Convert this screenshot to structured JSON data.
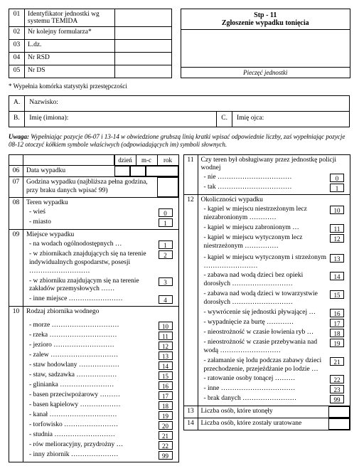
{
  "header": {
    "rows": [
      {
        "n": "01",
        "t": "Identyfikator jednostki wg systemu TEMIDA"
      },
      {
        "n": "02",
        "t": "Nr kolejny formularza*"
      },
      {
        "n": "03",
        "t": "L.dz."
      },
      {
        "n": "04",
        "t": "Nr RSD"
      },
      {
        "n": "05",
        "t": "Nr DS"
      }
    ],
    "code": "Stp - 11",
    "title": "Zgłoszenie wypadku tonięcia",
    "stamp": "Pieczęć jednostki"
  },
  "footnote": "* Wypełnia komórka statystyki przestępczości",
  "names": {
    "a": {
      "idx": "A.",
      "lbl": "Nazwisko:"
    },
    "b": {
      "idx": "B.",
      "lbl": "Imię (imiona):"
    },
    "c": {
      "idx": "C.",
      "lbl": "Imię ojca:"
    }
  },
  "uwaga": "Uwaga: Wypełniając pozycje 06-07 i 13-14 w obwiedzione grubszą linią kratki wpisać odpowiednie liczby, zaś wypełniając pozycje 08-12 otoczyć kółkiem symbole właściwych (odpowiadających im) symboli słownych.",
  "left": {
    "dateHdr": [
      "dzień",
      "m-c",
      "rok"
    ],
    "r06": {
      "n": "06",
      "t": "Data wypadku"
    },
    "r07": {
      "n": "07",
      "t": "Godzina wypadku (najbliższa pełna godzina, przy braku danych wpisać 99)"
    },
    "r08": {
      "n": "08",
      "t": "Teren wypadku",
      "items": [
        [
          "- wieś",
          "0"
        ],
        [
          "- miasto",
          "1"
        ]
      ]
    },
    "r09": {
      "n": "09",
      "t": "Miejsce wypadku",
      "items": [
        [
          "- na wodach ogólnodostępnych …",
          "1"
        ],
        [
          "- w zbiornikach znajdujących się na terenie indywidualnych gospodarstw, posesji ………………………",
          "2"
        ],
        [
          "- w zbiorniku znajdującym się na terenie zakładów przemysłowych ……",
          "3"
        ],
        [
          "- inne miejsce ……………………",
          "4"
        ]
      ]
    },
    "r10": {
      "n": "10",
      "t": "Rodzaj zbiornika wodnego",
      "items": [
        [
          "- morze …………………………",
          "10"
        ],
        [
          "- rzeka …………………………",
          "11"
        ],
        [
          "- jezioro ………………………",
          "12"
        ],
        [
          "- zalew …………………………",
          "13"
        ],
        [
          "- staw hodowlany ………………",
          "14"
        ],
        [
          "- staw, sadzawka ………………",
          "15"
        ],
        [
          "- glinianka ……………………",
          "16"
        ],
        [
          "- basen przeciwpożarowy ………",
          "17"
        ],
        [
          "- basen kąpielowy ………………",
          "18"
        ],
        [
          "- kanał …………………………",
          "19"
        ],
        [
          "- torfowisko ……………………",
          "20"
        ],
        [
          "- studnia ………………………",
          "21"
        ],
        [
          "- rów melioracyjny, przydrożny …",
          "22"
        ],
        [
          "- inny zbiornik …………………",
          "99"
        ]
      ]
    }
  },
  "right": {
    "r11": {
      "n": "11",
      "t": "Czy teren był obsługiwany przez jednostkę policji wodnej",
      "items": [
        [
          "- nie ……………………………",
          "0"
        ],
        [
          "- tak ……………………………",
          "1"
        ]
      ]
    },
    "r12": {
      "n": "12",
      "t": "Okoliczności wypadku",
      "items": [
        [
          "- kąpiel w miejscu niestrzeżonym lecz niezabronionym …………",
          "10"
        ],
        [
          "- kąpiel w miejscu zabronionym …",
          "11"
        ],
        [
          "- kąpiel w miejscu wytyczonym lecz niestrzeżonym ……………",
          "12"
        ],
        [
          "",
          ""
        ],
        [
          "- kąpiel w miejscu wytyczonym i strzeżonym ……………………",
          "13"
        ],
        [
          "- zabawa nad wodą dzieci bez opieki dorosłych ………………………",
          "14"
        ],
        [
          "- zabawa nad wodą dzieci w towarzystwie dorosłych ………………………",
          "15"
        ],
        [
          "- wywrócenie się jednostki pływającej …",
          "16"
        ],
        [
          "- wypadnięcie za burtę …………",
          "17"
        ],
        [
          "- nieostrożność w czasie łowienia ryb …",
          "18"
        ],
        [
          "- nieostrożność w czasie przebywania nad wodą ………………………",
          "19"
        ],
        [
          "- załamanie się lodu podczas zabawy dzieci przechodzenie, przejeżdżanie po lodzie …",
          "21"
        ],
        [
          "- ratowanie osoby tonącej ………",
          "22"
        ],
        [
          "- inne ……………………………",
          "23"
        ],
        [
          "- brak danych ……………………",
          "99"
        ]
      ]
    },
    "r13": {
      "n": "13",
      "t": "Liczba osób, które utonęły"
    },
    "r14": {
      "n": "14",
      "t": "Liczba osób, które zostały uratowane"
    }
  }
}
